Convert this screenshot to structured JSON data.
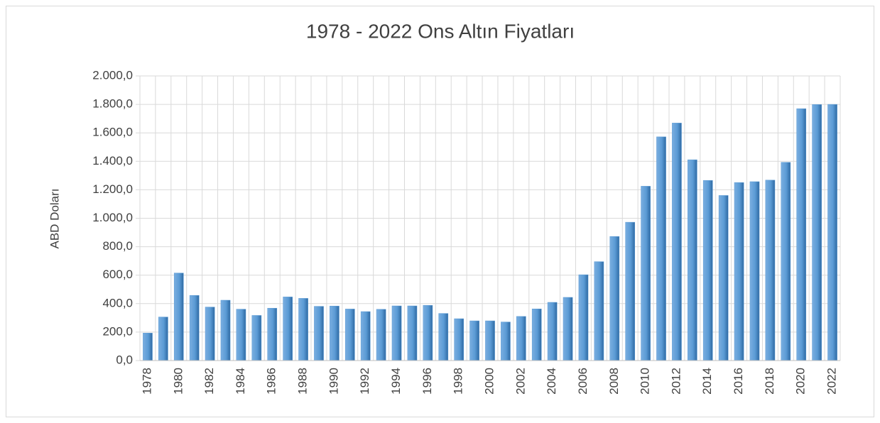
{
  "chart_data": {
    "type": "bar",
    "title": "1978 - 2022 Ons Altın Fiyatları",
    "y_label": "ABD Doları",
    "categories": [
      "1978",
      null,
      "1980",
      null,
      "1982",
      null,
      "1984",
      null,
      "1986",
      null,
      "1988",
      null,
      "1990",
      null,
      "1992",
      null,
      "1994",
      null,
      "1996",
      null,
      "1998",
      null,
      "2000",
      null,
      "2002",
      null,
      "2004",
      null,
      "2006",
      null,
      "2008",
      null,
      "2010",
      null,
      "2012",
      null,
      "2014",
      null,
      "2016",
      null,
      "2018",
      null,
      "2020",
      null,
      "2022"
    ],
    "values": [
      193,
      306,
      615,
      458,
      376,
      424,
      361,
      317,
      368,
      447,
      437,
      381,
      383,
      362,
      344,
      360,
      384,
      384,
      388,
      331,
      294,
      279,
      279,
      271,
      310,
      363,
      409,
      444,
      603,
      695,
      872,
      972,
      1225,
      1572,
      1669,
      1411,
      1266,
      1160,
      1251,
      1257,
      1268,
      1393,
      1770,
      1799,
      1800
    ],
    "color": "#5b9bd5",
    "ylim": [
      0,
      2000
    ],
    "yticks": [
      {
        "value": 0,
        "label": "0,0"
      },
      {
        "value": 200,
        "label": "200,0"
      },
      {
        "value": 400,
        "label": "400,0"
      },
      {
        "value": 600,
        "label": "600,0"
      },
      {
        "value": 800,
        "label": "800,0"
      },
      {
        "value": 1000,
        "label": "1.000,0"
      },
      {
        "value": 1200,
        "label": "1.200,0"
      },
      {
        "value": 1400,
        "label": "1.400,0"
      },
      {
        "value": 1600,
        "label": "1.600,0"
      },
      {
        "value": 1800,
        "label": "1.800,0"
      },
      {
        "value": 2000,
        "label": "2.000,0"
      }
    ],
    "grid": true
  }
}
